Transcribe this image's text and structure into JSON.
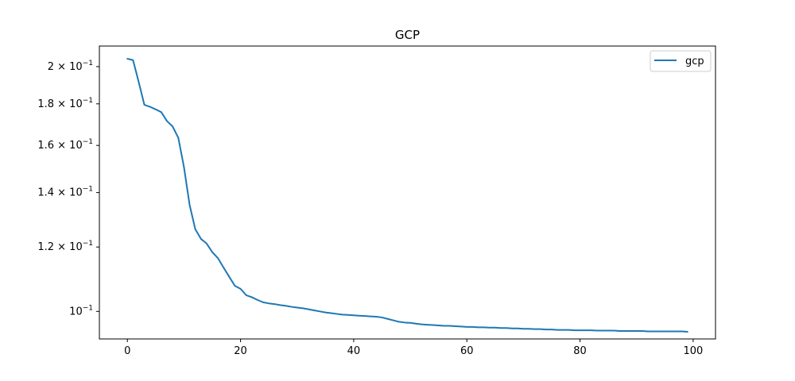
{
  "chart_data": {
    "type": "line",
    "title": "GCP",
    "xlabel": "",
    "ylabel": "",
    "xlim": [
      -4.95,
      103.95
    ],
    "ylim": [
      0.0925,
      0.212
    ],
    "yscale": "log",
    "grid": false,
    "legend_position": "top-right",
    "colors": {
      "gcp": "#1f77b4"
    },
    "x_ticks": [
      {
        "value": 0,
        "label": "0"
      },
      {
        "value": 20,
        "label": "20"
      },
      {
        "value": 40,
        "label": "40"
      },
      {
        "value": 60,
        "label": "60"
      },
      {
        "value": 80,
        "label": "80"
      },
      {
        "value": 100,
        "label": "100"
      }
    ],
    "y_ticks": [
      {
        "value": 0.1,
        "base": "10",
        "exp": "−1"
      },
      {
        "value": 0.12,
        "base": "1.2 × 10",
        "exp": "−1"
      },
      {
        "value": 0.14,
        "base": "1.4 × 10",
        "exp": "−1"
      },
      {
        "value": 0.16,
        "base": "1.6 × 10",
        "exp": "−1"
      },
      {
        "value": 0.18,
        "base": "1.8 × 10",
        "exp": "−1"
      },
      {
        "value": 0.2,
        "base": "2 × 10",
        "exp": "−1"
      }
    ],
    "series": [
      {
        "name": "gcp",
        "x": [
          0,
          1,
          2,
          3,
          4,
          5,
          6,
          7,
          8,
          9,
          10,
          11,
          12,
          13,
          14,
          15,
          16,
          17,
          18,
          19,
          20,
          21,
          22,
          23,
          24,
          25,
          26,
          27,
          28,
          29,
          30,
          31,
          32,
          33,
          34,
          35,
          36,
          37,
          38,
          39,
          40,
          41,
          42,
          43,
          44,
          45,
          46,
          47,
          48,
          49,
          50,
          51,
          52,
          53,
          54,
          55,
          56,
          57,
          58,
          59,
          60,
          61,
          62,
          63,
          64,
          65,
          66,
          67,
          68,
          69,
          70,
          71,
          72,
          73,
          74,
          75,
          76,
          77,
          78,
          79,
          80,
          81,
          82,
          83,
          84,
          85,
          86,
          87,
          88,
          89,
          90,
          91,
          92,
          93,
          94,
          95,
          96,
          97,
          98,
          99
        ],
        "y": [
          0.2045,
          0.2037,
          0.1915,
          0.1795,
          0.1785,
          0.1772,
          0.1758,
          0.1714,
          0.1688,
          0.1635,
          0.1505,
          0.1352,
          0.1262,
          0.1228,
          0.1212,
          0.1183,
          0.1163,
          0.1132,
          0.1103,
          0.1075,
          0.1066,
          0.1047,
          0.1041,
          0.1033,
          0.1026,
          0.1023,
          0.1021,
          0.1018,
          0.1016,
          0.1013,
          0.1011,
          0.1009,
          0.1006,
          0.1003,
          0.1,
          0.0997,
          0.0995,
          0.0993,
          0.0991,
          0.099,
          0.0989,
          0.0988,
          0.0987,
          0.0986,
          0.0985,
          0.0983,
          0.0979,
          0.0975,
          0.0971,
          0.0969,
          0.0968,
          0.0966,
          0.0964,
          0.0963,
          0.0962,
          0.0961,
          0.096,
          0.096,
          0.0959,
          0.0958,
          0.0957,
          0.0957,
          0.0956,
          0.0956,
          0.0955,
          0.0955,
          0.0954,
          0.0954,
          0.0953,
          0.0953,
          0.0952,
          0.0952,
          0.0951,
          0.0951,
          0.095,
          0.095,
          0.0949,
          0.0949,
          0.0949,
          0.0948,
          0.0948,
          0.0948,
          0.0948,
          0.0947,
          0.0947,
          0.0947,
          0.0947,
          0.0946,
          0.0946,
          0.0946,
          0.0946,
          0.0946,
          0.0945,
          0.0945,
          0.0945,
          0.0945,
          0.0945,
          0.0945,
          0.0945,
          0.0944
        ]
      }
    ]
  }
}
